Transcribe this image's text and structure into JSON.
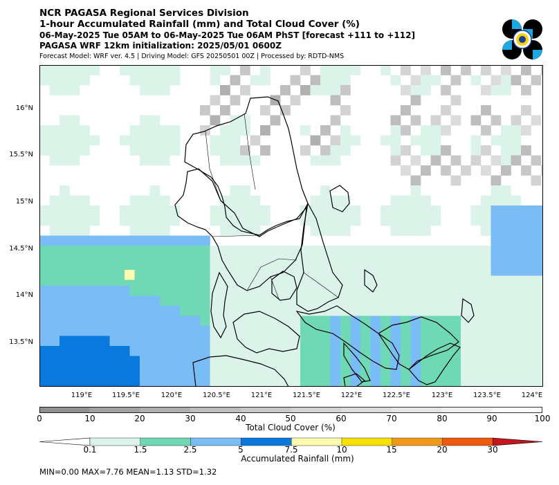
{
  "header": {
    "org": "NCR PAGASA Regional Services Division",
    "product": "1-hour Accumulated Rainfall (mm) and Total Cloud Cover (%)",
    "valid_period": "06-May-2025 Tue 05AM to 06-May-2025 Tue 06AM PhST [forecast +111 to +112]",
    "init": "PAGASA WRF 12km initialization: 2025/05/01 0600Z",
    "models": "Forecast Model: WRF ver. 4.5 | Driving Model: GFS 20250501 00Z | Processed by: RDTD-NMS"
  },
  "map": {
    "lat_ticks": [
      "16°N",
      "15.5°N",
      "15°N",
      "14.5°N",
      "14°N",
      "13.5°N"
    ],
    "lon_ticks": [
      "119°E",
      "119.5°E",
      "120°E",
      "120.5°E",
      "121°E",
      "121.5°E",
      "122°E",
      "122.5°E",
      "123°E",
      "123.5°E",
      "124°E"
    ]
  },
  "cloud_colorbar": {
    "title": "Total Cloud Cover (%)",
    "ticks": [
      "0",
      "10",
      "20",
      "30",
      "40",
      "50",
      "60",
      "70",
      "80",
      "90",
      "100"
    ],
    "colors": [
      "#919191",
      "#a1a1a1",
      "#b0b0b0",
      "#bdbdbd",
      "#c8c8c8",
      "#d3d3d3",
      "#dcdcdc",
      "#e5e5e5",
      "#eeeeee",
      "#f8f8f8"
    ]
  },
  "rain_colorbar": {
    "title": "Accumulated Rainfall (mm)",
    "ticks": [
      "0.1",
      "1.5",
      "2.5",
      "5",
      "7.5",
      "10",
      "15",
      "20",
      "30"
    ],
    "colors": [
      "#dcf3ea",
      "#6fd8b4",
      "#7abdf6",
      "#0a79dd",
      "#fffcb0",
      "#f8e000",
      "#f0981b",
      "#ee5a0e",
      "#c3161e"
    ]
  },
  "stats": "MIN=0.00   MAX=7.76   MEAN=1.13   STD=1.32"
}
